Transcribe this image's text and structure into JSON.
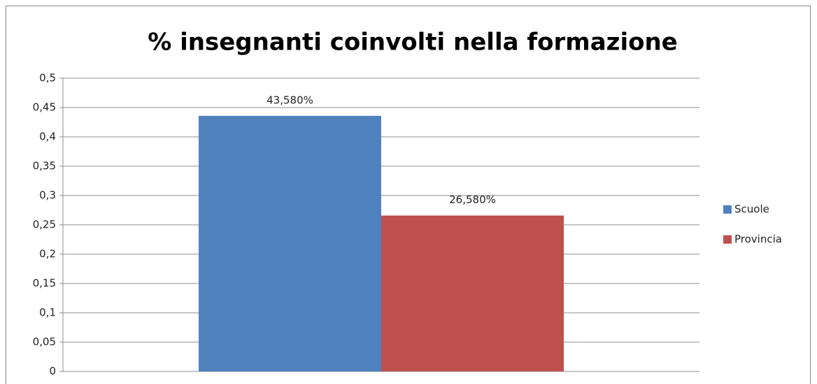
{
  "chart_data": {
    "type": "bar",
    "title": "% insegnanti coinvolti nella formazione",
    "categories": [
      null
    ],
    "series": [
      {
        "name": "Scuole",
        "color": "#4f81bd",
        "values": [
          0.4358
        ],
        "value_labels": [
          "43,580%"
        ]
      },
      {
        "name": "Provincia",
        "color": "#c0504d",
        "values": [
          0.2658
        ],
        "value_labels": [
          "26,580%"
        ]
      }
    ],
    "ylim": [
      0,
      0.5
    ],
    "yticks": [
      0,
      {
        "value": 0.05,
        "label": "0,05"
      },
      {
        "value": 0.1,
        "label": "0,1"
      },
      {
        "value": 0.15,
        "label": "0,15"
      },
      {
        "value": 0.2,
        "label": "0,2"
      },
      {
        "value": 0.25,
        "label": "0,25"
      },
      {
        "value": 0.3,
        "label": "0,3"
      },
      {
        "value": 0.35,
        "label": "0,35"
      },
      {
        "value": 0.4,
        "label": "0,4"
      },
      {
        "value": 0.45,
        "label": "0,45"
      },
      {
        "value": 0.5,
        "label": "0,5"
      }
    ],
    "grid": true,
    "legend": "right"
  }
}
